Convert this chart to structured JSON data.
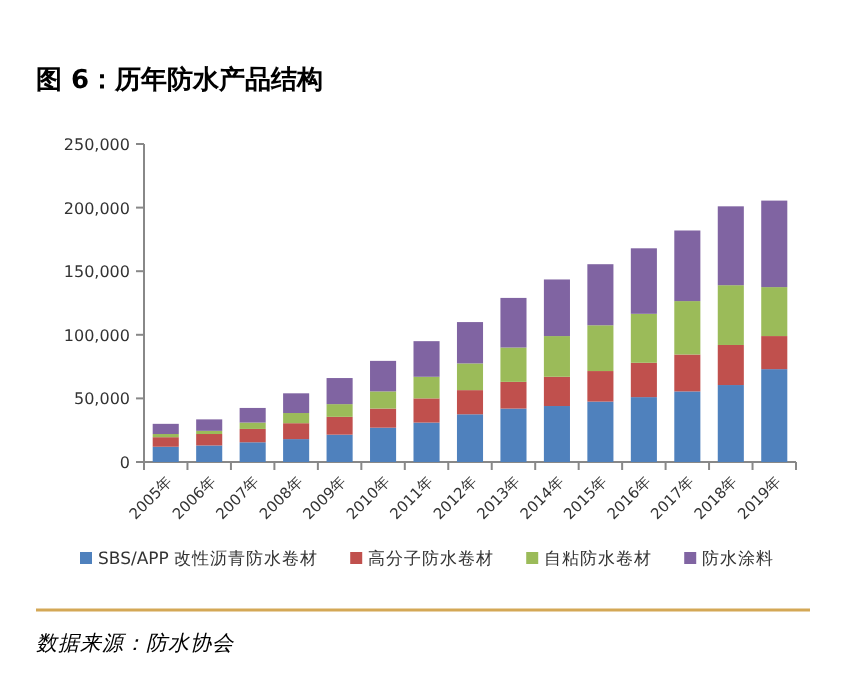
{
  "chart_data": {
    "type": "bar",
    "stacked": true,
    "title": "图 6：历年防水产品结构",
    "categories": [
      "2005年",
      "2006年",
      "2007年",
      "2008年",
      "2009年",
      "2010年",
      "2011年",
      "2012年",
      "2013年",
      "2014年",
      "2015年",
      "2016年",
      "2017年",
      "2018年",
      "2019年"
    ],
    "series": [
      {
        "name": "SBS/APP 改性沥青防水卷材",
        "color": "#4f81bd",
        "values": [
          12000,
          13000,
          15500,
          18000,
          21500,
          27000,
          31000,
          37500,
          42000,
          44000,
          47500,
          51000,
          55500,
          60500,
          73000
        ]
      },
      {
        "name": "高分子防水卷材",
        "color": "#c0504d",
        "values": [
          7500,
          9000,
          10500,
          12500,
          14000,
          15000,
          19000,
          19000,
          21000,
          23000,
          24000,
          27000,
          29000,
          31500,
          26000
        ]
      },
      {
        "name": "自粘防水卷材",
        "color": "#9bbb59",
        "values": [
          2500,
          2500,
          5000,
          8000,
          10000,
          13500,
          17000,
          21000,
          27000,
          32000,
          36000,
          38500,
          42000,
          47000,
          38500
        ]
      },
      {
        "name": "防水涂料",
        "color": "#8064a2",
        "values": [
          8000,
          9000,
          11500,
          15500,
          20500,
          24000,
          28000,
          32500,
          39000,
          44500,
          48000,
          51500,
          55500,
          62000,
          68000
        ]
      }
    ],
    "ylim": [
      0,
      250000
    ],
    "yticks": [
      0,
      {
        "value": 50000,
        "label": "50,000"
      },
      {
        "value": 100000,
        "label": "100,000"
      },
      {
        "value": 150000,
        "label": "150,000"
      },
      {
        "value": 200000,
        "label": "200,000"
      },
      {
        "value": 250000,
        "label": "250,000"
      }
    ],
    "grid": false,
    "legend": "bottom",
    "annotations": [
      "数据来源：防水协会"
    ]
  }
}
